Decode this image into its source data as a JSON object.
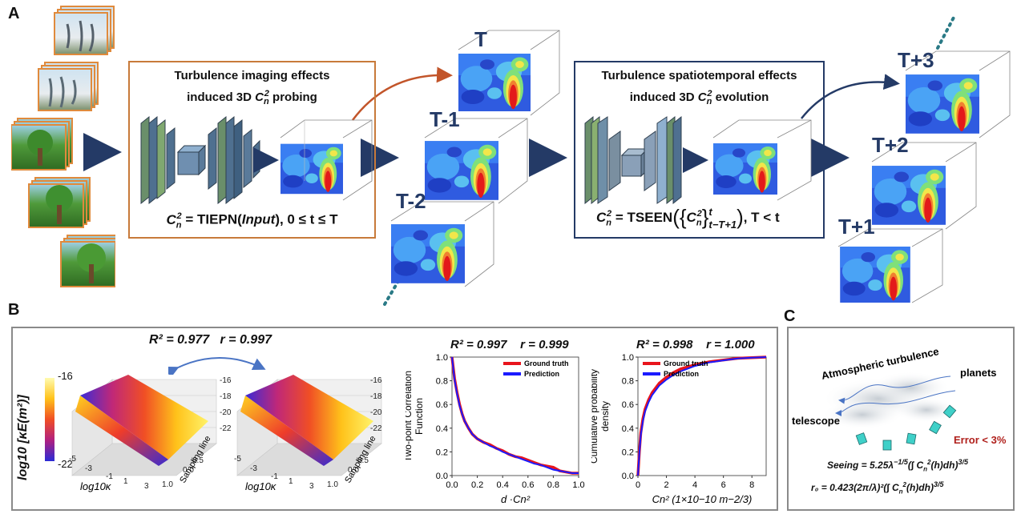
{
  "panelA": {
    "letter": "A",
    "box1": {
      "title_line1": "Turbulence imaging effects",
      "title_line2_pre": "induced 3D ",
      "title_line2_post": " probing",
      "formula_post": " = TIEPN(",
      "formula_input": "Input",
      "formula_tail": "), 0 ≤ t ≤ T"
    },
    "box2": {
      "title_line1": "Turbulence spatiotemporal effects",
      "title_line2_pre": "induced 3D ",
      "title_line2_post": " evolution",
      "formula_post": " = TSEEN",
      "formula_tail": ", T < t",
      "sup": "t",
      "sub": "t−T+1"
    },
    "cn2": "C",
    "cn2_sub": "n",
    "cn2_sup": "2",
    "time_labels": [
      "T",
      "T-1",
      "T-2",
      "T+3",
      "T+2",
      "T+1"
    ]
  },
  "panelB": {
    "letter": "B",
    "stats1": {
      "r2": "R² = 0.977",
      "r": "r = 0.997"
    },
    "colorbar": {
      "label": "log10 [κE(m²)]",
      "max": "-16",
      "min": "-22"
    },
    "surface_zticks": [
      "-16",
      "-18",
      "-20",
      "-22"
    ],
    "surface_xticks": [
      "-5",
      "-3",
      "-1",
      "1",
      "3"
    ],
    "surface_yticks": [
      "0.0",
      "0.5",
      "1.0"
    ],
    "surface_xlabel": "log10κ",
    "surface_ylabel": "Sampling line",
    "corr_stats": {
      "r2": "R² = 0.997",
      "r": "r = 0.999"
    },
    "cdf_stats": {
      "r2": "R² = 0.998",
      "r": "r = 1.000"
    }
  },
  "panelC": {
    "letter": "C",
    "title": "Atmospheric turbulence",
    "planets": "planets",
    "telescope": "telescope",
    "error": "Error < 3%",
    "seeing": "Seeing = 5.25λ",
    "r0": "r₀ = 0.423(2π/λ)²"
  },
  "colors": {
    "accent": "#243a66",
    "orange": "#c87a3a",
    "red": "#e8141c",
    "blue": "#1a1aff",
    "gray": "#777777",
    "error": "#b0201c"
  },
  "chart_data": [
    {
      "type": "line",
      "title": "",
      "xlabel": "d ·Cn²",
      "ylabel": "Two-point Correlation Function",
      "xlim": [
        0,
        1.0
      ],
      "ylim": [
        0,
        1.0
      ],
      "xticks": [
        "0.0",
        "0.2",
        "0.4",
        "0.6",
        "0.8",
        "1.0"
      ],
      "yticks": [
        "0.0",
        "0.2",
        "0.4",
        "0.6",
        "0.8",
        "1.0"
      ],
      "legend": "top-right",
      "series": [
        {
          "name": "Ground truth",
          "color": "#e8141c",
          "x": [
            0.0,
            0.02,
            0.04,
            0.06,
            0.08,
            0.1,
            0.13,
            0.16,
            0.2,
            0.25,
            0.3,
            0.35,
            0.4,
            0.45,
            0.5,
            0.55,
            0.6,
            0.65,
            0.7,
            0.75,
            0.8,
            0.85,
            0.9,
            0.95,
            1.0
          ],
          "y": [
            1.0,
            0.82,
            0.7,
            0.6,
            0.52,
            0.46,
            0.4,
            0.35,
            0.31,
            0.28,
            0.26,
            0.23,
            0.21,
            0.18,
            0.16,
            0.15,
            0.13,
            0.11,
            0.09,
            0.08,
            0.07,
            0.04,
            0.03,
            0.02,
            0.02
          ]
        },
        {
          "name": "Prediction",
          "color": "#1a1aff",
          "x": [
            0.0,
            0.02,
            0.04,
            0.06,
            0.08,
            0.1,
            0.13,
            0.16,
            0.2,
            0.25,
            0.3,
            0.35,
            0.4,
            0.45,
            0.5,
            0.55,
            0.6,
            0.65,
            0.7,
            0.75,
            0.8,
            0.85,
            0.9,
            0.95,
            1.0
          ],
          "y": [
            1.0,
            0.81,
            0.69,
            0.59,
            0.52,
            0.46,
            0.4,
            0.35,
            0.31,
            0.28,
            0.25,
            0.23,
            0.2,
            0.18,
            0.16,
            0.14,
            0.12,
            0.1,
            0.09,
            0.07,
            0.05,
            0.04,
            0.03,
            0.02,
            0.02
          ]
        }
      ]
    },
    {
      "type": "line",
      "title": "",
      "xlabel": "Cn² (1×10−10 m−2/3)",
      "ylabel": "Cumulative probability density",
      "xlim": [
        0,
        9
      ],
      "ylim": [
        0,
        1.0
      ],
      "xticks": [
        "0",
        "2",
        "4",
        "6",
        "8"
      ],
      "yticks": [
        "0.0",
        "0.2",
        "0.4",
        "0.6",
        "0.8",
        "1.0"
      ],
      "legend": "top-left",
      "series": [
        {
          "name": "Ground truth",
          "color": "#e8141c",
          "x": [
            0.0,
            0.1,
            0.2,
            0.35,
            0.5,
            0.75,
            1.0,
            1.5,
            2.0,
            2.5,
            3.0,
            4.0,
            5.0,
            6.0,
            7.0,
            8.0,
            9.0
          ],
          "y": [
            0.0,
            0.2,
            0.36,
            0.48,
            0.56,
            0.64,
            0.7,
            0.78,
            0.83,
            0.87,
            0.9,
            0.935,
            0.96,
            0.975,
            0.99,
            0.995,
            1.0
          ]
        },
        {
          "name": "Prediction",
          "color": "#1a1aff",
          "x": [
            0.0,
            0.1,
            0.2,
            0.35,
            0.5,
            0.75,
            1.0,
            1.5,
            2.0,
            2.5,
            3.0,
            4.0,
            5.0,
            6.0,
            7.0,
            8.0,
            9.0
          ],
          "y": [
            0.0,
            0.19,
            0.34,
            0.46,
            0.54,
            0.62,
            0.68,
            0.76,
            0.81,
            0.85,
            0.88,
            0.925,
            0.955,
            0.972,
            0.988,
            0.995,
            1.0
          ]
        }
      ]
    }
  ]
}
